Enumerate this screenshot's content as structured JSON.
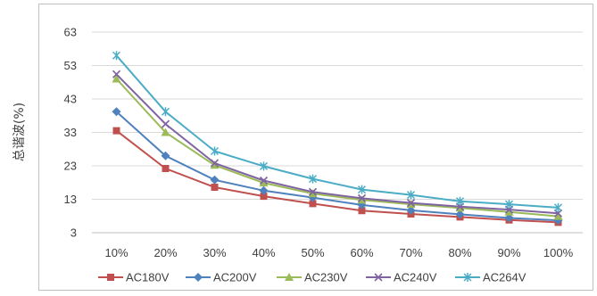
{
  "chart_data": {
    "type": "line",
    "title": "",
    "xlabel": "",
    "ylabel": "总谐波(%)",
    "categories": [
      "10%",
      "20%",
      "30%",
      "40%",
      "50%",
      "60%",
      "70%",
      "80%",
      "90%",
      "100%"
    ],
    "yticks": [
      3,
      13,
      23,
      33,
      43,
      53,
      63
    ],
    "ylim": [
      3,
      63
    ],
    "grid": "horizontal",
    "legend_position": "bottom",
    "series": [
      {
        "name": "AC180V",
        "color": "#c0504d",
        "marker": "square",
        "values": [
          33.5,
          22.2,
          16.6,
          13.9,
          11.7,
          9.6,
          8.6,
          7.7,
          6.8,
          6.1
        ]
      },
      {
        "name": "AC200V",
        "color": "#4f81bd",
        "marker": "diamond",
        "values": [
          39.2,
          26.0,
          18.8,
          15.6,
          13.5,
          11.3,
          9.7,
          8.5,
          7.4,
          6.7
        ]
      },
      {
        "name": "AC230V",
        "color": "#9bbb59",
        "marker": "triangle",
        "values": [
          49.0,
          33.0,
          23.2,
          17.9,
          14.7,
          12.8,
          11.5,
          10.4,
          9.2,
          7.9
        ]
      },
      {
        "name": "AC240V",
        "color": "#8064a2",
        "marker": "x",
        "values": [
          50.4,
          35.5,
          23.8,
          18.6,
          15.2,
          13.3,
          11.9,
          10.8,
          9.9,
          8.8
        ]
      },
      {
        "name": "AC264V",
        "color": "#4bacc6",
        "marker": "asterisk",
        "values": [
          56.0,
          39.2,
          27.4,
          22.9,
          19.1,
          15.9,
          14.3,
          12.4,
          11.5,
          10.5
        ]
      }
    ]
  }
}
